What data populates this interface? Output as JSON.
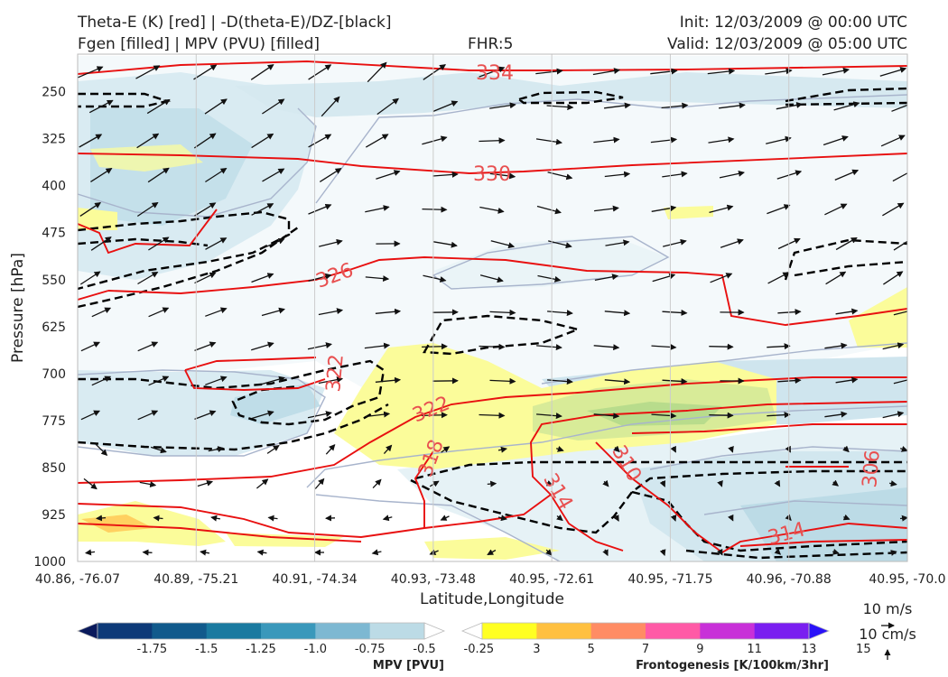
{
  "header": {
    "title_line1": "Theta-E (K) [red] | -D(theta-E)/DZ-[black]",
    "title_line2": "Fgen [filled] | MPV (PVU) [filled]",
    "fhr": "FHR:5",
    "init": "Init: 12/03/2009 @ 00:00 UTC",
    "valid": "Valid: 12/03/2009 @ 05:00 UTC"
  },
  "chart_data": {
    "type": "cross-section",
    "xlabel": "Latitude,Longitude",
    "ylabel": "Pressure [hPa]",
    "x_ticks": [
      "40.86, -76.07",
      "40.89, -75.21",
      "40.91, -74.34",
      "40.93, -73.48",
      "40.95, -72.61",
      "40.95, -71.75",
      "40.96, -70.88",
      "40.95, -70.0"
    ],
    "y_ticks": [
      "250",
      "325",
      "400",
      "475",
      "550",
      "625",
      "700",
      "775",
      "850",
      "925",
      "1000"
    ],
    "ylim": [
      1000,
      190
    ],
    "grid": true,
    "theta_e_labels": [
      "334",
      "330",
      "326",
      "322",
      "322",
      "318",
      "314",
      "310",
      "314",
      "306"
    ],
    "colors": {
      "theta_e": "#e81010",
      "dthetae_dz": "#000000",
      "vector": "#111111",
      "mpv_contour": "#a8b4cc"
    }
  },
  "colorbars": {
    "mpv": {
      "title": "MPV [PVU]",
      "ticks": [
        "-1.75",
        "-1.5",
        "-1.25",
        "-1.0",
        "-0.75",
        "-0.5",
        "-0.25"
      ],
      "colors": [
        "#0a1a5c",
        "#0d3a78",
        "#115a8c",
        "#1a7aa0",
        "#3a98bb",
        "#7db8d2",
        "#bcdbe6",
        "#ffffff"
      ]
    },
    "fgen": {
      "title": "Frontogenesis [K/100km/3hr]",
      "ticks": [
        "3",
        "5",
        "7",
        "9",
        "11",
        "13",
        "15"
      ],
      "colors": [
        "#ffffff",
        "#ffff22",
        "#ffc040",
        "#ff8c64",
        "#ff5aa6",
        "#c830d8",
        "#7a1ef0",
        "#2a12f8"
      ]
    }
  },
  "reference_vectors": {
    "horizontal": "10 m/s",
    "vertical": "10 cm/s"
  }
}
